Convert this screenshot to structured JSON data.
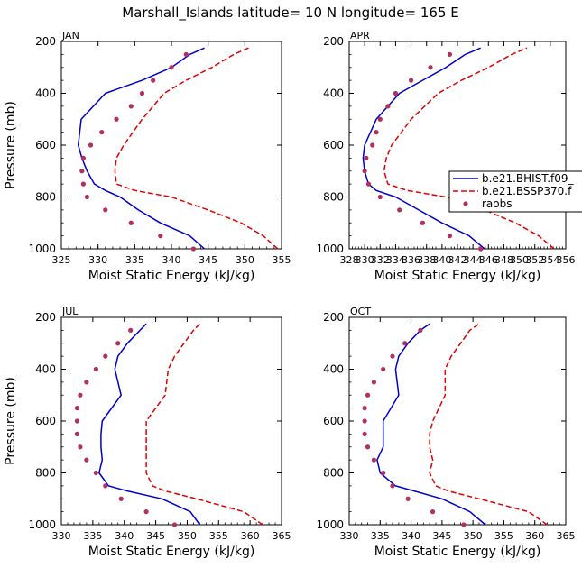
{
  "figure": {
    "title": "Marshall_Islands  latitude= 10 N longitude= 165 E"
  },
  "legend": {
    "placement": "right of APR panel",
    "entries": [
      {
        "label": "b.e21.BHIST.f09_",
        "color": "#0000cc",
        "style": "solid"
      },
      {
        "label": "b.e21.BSSP370.f",
        "color": "#e00000",
        "style": "dashed"
      },
      {
        "label": "raobs",
        "color": "#b03060",
        "style": "dots"
      }
    ]
  },
  "chart_data": [
    {
      "type": "line",
      "panel": "JAN",
      "xlabel": "Moist Static Energy (kJ/kg)",
      "ylabel": "Pressure (mb)",
      "xlim": [
        325,
        355
      ],
      "ylim": [
        1000,
        200
      ],
      "xticks": [
        325,
        330,
        335,
        340,
        345,
        350,
        355
      ],
      "yticks": [
        200,
        400,
        600,
        800,
        1000
      ],
      "series": [
        {
          "name": "b.e21.BHIST.f09_",
          "color": "#0000cc",
          "style": "solid",
          "x": [
            344.5,
            342.5,
            338.5,
            335.5,
            333,
            331,
            329.5,
            328.5,
            327.8,
            327.3,
            327.7,
            331,
            336,
            340,
            342.5,
            344.5
          ],
          "y": [
            1000,
            950,
            900,
            850,
            800,
            775,
            750,
            700,
            650,
            600,
            500,
            400,
            350,
            300,
            250,
            225
          ]
        },
        {
          "name": "b.e21.BSSP370.f",
          "color": "#e00000",
          "style": "dashed",
          "x": [
            354.5,
            352.5,
            349.5,
            345,
            340,
            335,
            332.5,
            332.3,
            332.5,
            333.5,
            336,
            339,
            342,
            345.5,
            348.5,
            350.5
          ],
          "y": [
            1000,
            950,
            900,
            850,
            800,
            775,
            750,
            700,
            650,
            600,
            500,
            400,
            350,
            300,
            250,
            225
          ]
        },
        {
          "name": "raobs",
          "color": "#b03060",
          "style": "dots",
          "x": [
            343,
            338.5,
            334.5,
            331,
            328.5,
            328,
            327.8,
            328,
            329,
            330.5,
            332.5,
            334.5,
            336,
            337.5,
            340,
            342
          ],
          "y": [
            1000,
            950,
            900,
            850,
            800,
            750,
            700,
            650,
            600,
            550,
            500,
            450,
            400,
            350,
            300,
            250
          ]
        }
      ]
    },
    {
      "type": "line",
      "panel": "APR",
      "xlabel": "Moist Static Energy (kJ/kg)",
      "ylabel": "",
      "xlim": [
        328,
        356
      ],
      "ylim": [
        1000,
        200
      ],
      "xticks": [
        328,
        330,
        332,
        334,
        336,
        338,
        340,
        342,
        344,
        346,
        348,
        350,
        352,
        354,
        356
      ],
      "yticks": [
        200,
        400,
        600,
        800,
        1000
      ],
      "series": [
        {
          "name": "b.e21.BHIST.f09_",
          "color": "#0000cc",
          "style": "solid",
          "x": [
            345.5,
            343.5,
            340,
            337,
            334,
            331.5,
            330.5,
            330,
            329.8,
            330,
            331.5,
            334.5,
            337.5,
            340.5,
            343,
            345
          ],
          "y": [
            1000,
            950,
            900,
            850,
            800,
            775,
            750,
            700,
            650,
            600,
            500,
            400,
            350,
            300,
            250,
            225
          ]
        },
        {
          "name": "b.e21.BSSP370.f",
          "color": "#e00000",
          "style": "dashed",
          "x": [
            354.5,
            352.5,
            349.5,
            345.5,
            340.5,
            335.5,
            333,
            332.5,
            332.8,
            333.5,
            336,
            339.5,
            342.5,
            346,
            349,
            351
          ],
          "y": [
            1000,
            950,
            900,
            850,
            800,
            775,
            750,
            700,
            650,
            600,
            500,
            400,
            350,
            300,
            250,
            225
          ]
        },
        {
          "name": "raobs",
          "color": "#b03060",
          "style": "dots",
          "x": [
            345,
            341,
            337.5,
            334.5,
            332,
            330.5,
            330,
            330.2,
            331,
            331.5,
            332,
            333,
            334,
            336,
            338.5,
            341
          ],
          "y": [
            1000,
            950,
            900,
            850,
            800,
            750,
            700,
            650,
            600,
            550,
            500,
            450,
            400,
            350,
            300,
            250
          ]
        }
      ]
    },
    {
      "type": "line",
      "panel": "JUL",
      "xlabel": "Moist Static Energy (kJ/kg)",
      "ylabel": "Pressure (mb)",
      "xlim": [
        330,
        365
      ],
      "ylim": [
        1000,
        200
      ],
      "xticks": [
        330,
        335,
        340,
        345,
        350,
        355,
        360,
        365
      ],
      "yticks": [
        200,
        400,
        600,
        800,
        1000
      ],
      "series": [
        {
          "name": "b.e21.BHIST.f09_",
          "color": "#0000cc",
          "style": "solid",
          "x": [
            352,
            350.5,
            346,
            340.5,
            337.5,
            336,
            336.5,
            336.3,
            336.3,
            336.5,
            339.5,
            338.5,
            339,
            340.5,
            342.5,
            343.5
          ],
          "y": [
            1000,
            950,
            900,
            870,
            850,
            800,
            750,
            700,
            650,
            600,
            500,
            400,
            350,
            300,
            250,
            225
          ]
        },
        {
          "name": "b.e21.BSSP370.f",
          "color": "#e00000",
          "style": "dashed",
          "x": [
            362,
            359,
            351.5,
            346.5,
            344.5,
            343.5,
            343.5,
            343.5,
            343.5,
            343.5,
            346.5,
            347,
            348,
            349.5,
            351,
            352
          ],
          "y": [
            1000,
            950,
            900,
            870,
            850,
            800,
            750,
            700,
            650,
            600,
            500,
            400,
            350,
            300,
            250,
            225
          ]
        },
        {
          "name": "raobs",
          "color": "#b03060",
          "style": "dots",
          "x": [
            348,
            343.5,
            339.5,
            337,
            335.5,
            334,
            333,
            332.5,
            332.5,
            332.5,
            333,
            334,
            335.5,
            337,
            339,
            341
          ],
          "y": [
            1000,
            950,
            900,
            850,
            800,
            750,
            700,
            650,
            600,
            550,
            500,
            450,
            400,
            350,
            300,
            250
          ]
        }
      ]
    },
    {
      "type": "line",
      "panel": "OCT",
      "xlabel": "Moist Static Energy (kJ/kg)",
      "ylabel": "",
      "xlim": [
        330,
        365
      ],
      "ylim": [
        1000,
        200
      ],
      "xticks": [
        330,
        335,
        340,
        345,
        350,
        355,
        360,
        365
      ],
      "yticks": [
        200,
        400,
        600,
        800,
        1000
      ],
      "series": [
        {
          "name": "b.e21.BHIST.f09_",
          "color": "#0000cc",
          "style": "solid",
          "x": [
            352,
            349.5,
            345,
            340.5,
            337.5,
            335,
            334.5,
            335.5,
            335.5,
            335.5,
            338,
            337.5,
            338,
            339.5,
            341.5,
            343
          ],
          "y": [
            1000,
            950,
            900,
            870,
            850,
            800,
            750,
            700,
            650,
            600,
            500,
            400,
            350,
            300,
            250,
            225
          ]
        },
        {
          "name": "b.e21.BSSP370.f",
          "color": "#e00000",
          "style": "dashed",
          "x": [
            362,
            359,
            351,
            346,
            344,
            343,
            343.5,
            343,
            343,
            343.5,
            345.5,
            345.5,
            346.5,
            348,
            349.5,
            351
          ],
          "y": [
            1000,
            950,
            900,
            870,
            850,
            800,
            750,
            700,
            650,
            600,
            500,
            400,
            350,
            300,
            250,
            225
          ]
        },
        {
          "name": "raobs",
          "color": "#b03060",
          "style": "dots",
          "x": [
            348.5,
            343.5,
            339.5,
            337,
            335.5,
            334,
            333,
            332.5,
            332.5,
            332.5,
            333,
            334,
            335.5,
            337,
            339,
            341.5
          ],
          "y": [
            1000,
            950,
            900,
            850,
            800,
            750,
            700,
            650,
            600,
            550,
            500,
            450,
            400,
            350,
            300,
            250
          ]
        }
      ]
    }
  ]
}
